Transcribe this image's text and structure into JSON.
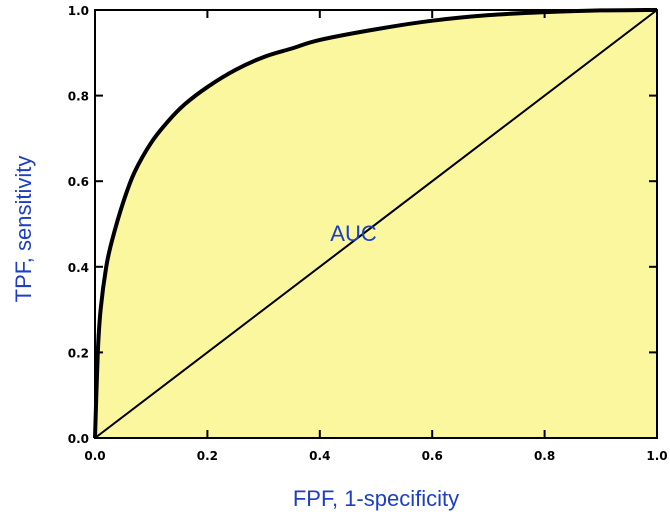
{
  "chart_data": {
    "type": "area",
    "xlabel": "FPF, 1-specificity",
    "ylabel": "TPF, sensitivity",
    "xlim": [
      0.0,
      1.0
    ],
    "ylim": [
      0.0,
      1.0
    ],
    "x_ticks": [
      "0.0",
      "0.2",
      "0.4",
      "0.6",
      "0.8",
      "1.0"
    ],
    "y_ticks": [
      "0.0",
      "0.2",
      "0.4",
      "0.6",
      "0.8",
      "1.0"
    ],
    "grid": false,
    "annotation": "AUC",
    "series": [
      {
        "role": "roc-curve",
        "x": [
          0.0,
          0.005,
          0.01,
          0.02,
          0.03,
          0.05,
          0.07,
          0.1,
          0.13,
          0.16,
          0.2,
          0.25,
          0.3,
          0.35,
          0.4,
          0.5,
          0.6,
          0.7,
          0.8,
          0.9,
          1.0
        ],
        "y": [
          0.0,
          0.2,
          0.3,
          0.4,
          0.46,
          0.55,
          0.62,
          0.69,
          0.74,
          0.78,
          0.82,
          0.86,
          0.89,
          0.91,
          0.93,
          0.955,
          0.975,
          0.988,
          0.995,
          0.999,
          1.0
        ]
      },
      {
        "role": "chance-diagonal",
        "x": [
          0.0,
          1.0
        ],
        "y": [
          0.0,
          1.0
        ]
      }
    ],
    "colors": {
      "fill": "#fbf79e",
      "curve": "#000000",
      "axis_title": "#1c3fc4",
      "annotation": "#1c3fc4"
    }
  }
}
